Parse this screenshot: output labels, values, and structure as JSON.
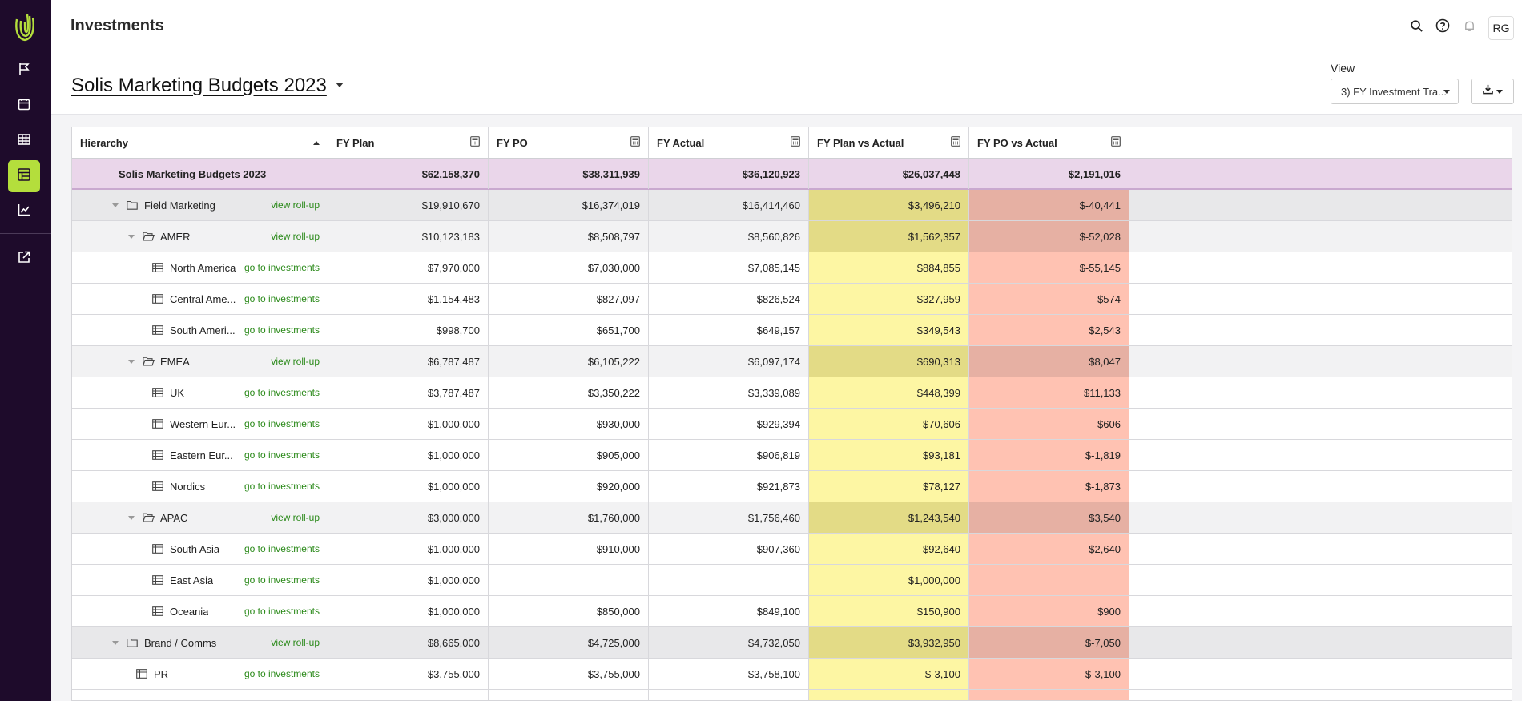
{
  "app": {
    "page_title": "Investments",
    "avatar_initials": "RG"
  },
  "colors": {
    "sidebar": "#1e0b2b",
    "accent": "#b4de3c",
    "total_row": "#ead6ea",
    "plan_vs_actual": "#fdf6a3",
    "plan_vs_actual_group": "#e3db86",
    "po_vs_actual": "#ffc2b2",
    "po_vs_actual_group": "#e6b0a3",
    "link": "#2b8a1a"
  },
  "sidebar": {
    "items": [
      "flag-icon",
      "calendar-icon",
      "grid-icon",
      "spreadsheet-icon",
      "line-chart-icon",
      "external-link-icon"
    ]
  },
  "subheader": {
    "budget_title": "Solis Marketing Budgets 2023",
    "view_label": "View",
    "view_value": "3) FY Investment Tra..."
  },
  "table": {
    "columns": [
      "Hierarchy",
      "FY Plan",
      "FY PO",
      "FY Actual",
      "FY Plan vs Actual",
      "FY PO vs Actual"
    ],
    "total": {
      "label": "Solis Marketing Budgets 2023",
      "values": [
        "$62,158,370",
        "$38,311,939",
        "$36,120,923",
        "$26,037,448",
        "$2,191,016"
      ]
    },
    "rows": [
      {
        "level": 1,
        "type": "folder",
        "label": "Field Marketing",
        "link": "view roll-up",
        "values": [
          "$19,910,670",
          "$16,374,019",
          "$16,414,460",
          "$3,496,210",
          "$-40,441"
        ]
      },
      {
        "level": 2,
        "type": "folder-open",
        "label": "AMER",
        "link": "view roll-up",
        "values": [
          "$10,123,183",
          "$8,508,797",
          "$8,560,826",
          "$1,562,357",
          "$-52,028"
        ]
      },
      {
        "level": 3,
        "type": "table",
        "label": "North America",
        "link": "go to investments",
        "values": [
          "$7,970,000",
          "$7,030,000",
          "$7,085,145",
          "$884,855",
          "$-55,145"
        ]
      },
      {
        "level": 3,
        "type": "table",
        "label": "Central Ame...",
        "link": "go to investments",
        "values": [
          "$1,154,483",
          "$827,097",
          "$826,524",
          "$327,959",
          "$574"
        ]
      },
      {
        "level": 3,
        "type": "table",
        "label": "South Ameri...",
        "link": "go to investments",
        "values": [
          "$998,700",
          "$651,700",
          "$649,157",
          "$349,543",
          "$2,543"
        ]
      },
      {
        "level": 2,
        "type": "folder-open",
        "label": "EMEA",
        "link": "view roll-up",
        "values": [
          "$6,787,487",
          "$6,105,222",
          "$6,097,174",
          "$690,313",
          "$8,047"
        ]
      },
      {
        "level": 3,
        "type": "table",
        "label": "UK",
        "link": "go to investments",
        "values": [
          "$3,787,487",
          "$3,350,222",
          "$3,339,089",
          "$448,399",
          "$11,133"
        ]
      },
      {
        "level": 3,
        "type": "table",
        "label": "Western Eur...",
        "link": "go to investments",
        "values": [
          "$1,000,000",
          "$930,000",
          "$929,394",
          "$70,606",
          "$606"
        ]
      },
      {
        "level": 3,
        "type": "table",
        "label": "Eastern Eur...",
        "link": "go to investments",
        "values": [
          "$1,000,000",
          "$905,000",
          "$906,819",
          "$93,181",
          "$-1,819"
        ]
      },
      {
        "level": 3,
        "type": "table",
        "label": "Nordics",
        "link": "go to investments",
        "values": [
          "$1,000,000",
          "$920,000",
          "$921,873",
          "$78,127",
          "$-1,873"
        ]
      },
      {
        "level": 2,
        "type": "folder-open",
        "label": "APAC",
        "link": "view roll-up",
        "values": [
          "$3,000,000",
          "$1,760,000",
          "$1,756,460",
          "$1,243,540",
          "$3,540"
        ]
      },
      {
        "level": 3,
        "type": "table",
        "label": "South Asia",
        "link": "go to investments",
        "values": [
          "$1,000,000",
          "$910,000",
          "$907,360",
          "$92,640",
          "$2,640"
        ]
      },
      {
        "level": 3,
        "type": "table",
        "label": "East Asia",
        "link": "go to investments",
        "values": [
          "$1,000,000",
          "",
          "",
          "$1,000,000",
          ""
        ]
      },
      {
        "level": 3,
        "type": "table",
        "label": "Oceania",
        "link": "go to investments",
        "values": [
          "$1,000,000",
          "$850,000",
          "$849,100",
          "$150,900",
          "$900"
        ]
      },
      {
        "level": 1,
        "type": "folder",
        "label": "Brand / Comms",
        "link": "view roll-up",
        "values": [
          "$8,665,000",
          "$4,725,000",
          "$4,732,050",
          "$3,932,950",
          "$-7,050"
        ]
      },
      {
        "level": 2,
        "type": "table",
        "label": "PR",
        "link": "go to investments",
        "values": [
          "$3,755,000",
          "$3,755,000",
          "$3,758,100",
          "$-3,100",
          "$-3,100"
        ]
      },
      {
        "level": 2,
        "type": "table",
        "label": "",
        "link": "",
        "values": [
          "",
          "",
          "",
          "",
          ""
        ]
      }
    ]
  }
}
